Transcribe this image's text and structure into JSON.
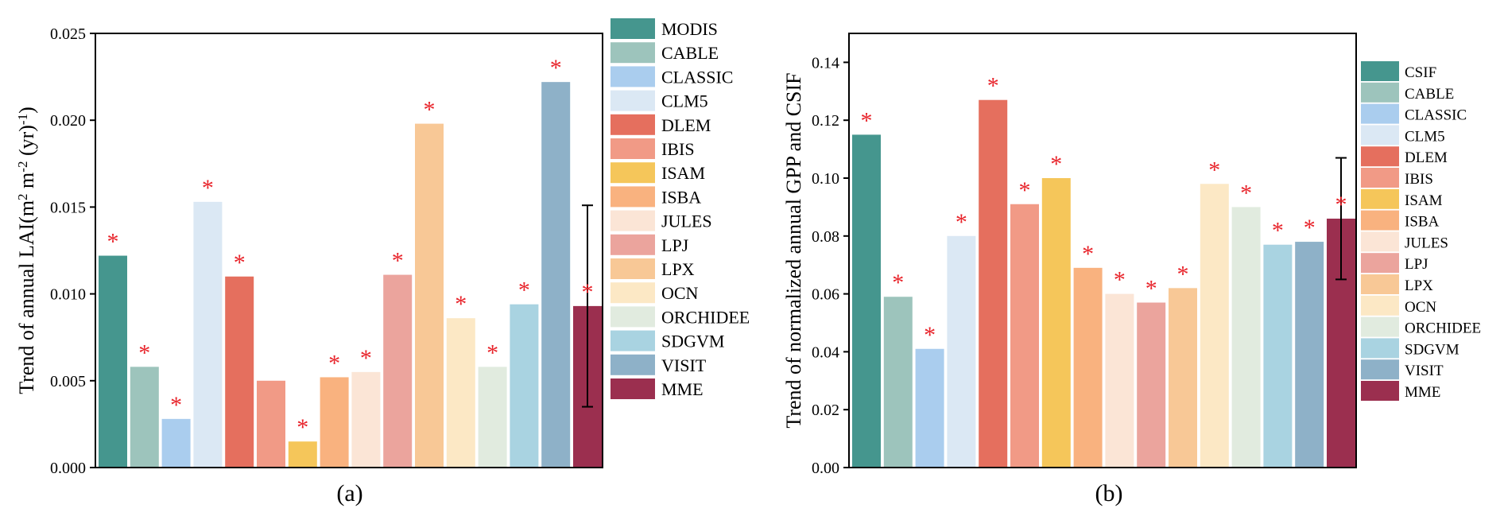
{
  "colors": {
    "MODIS": "#45968e",
    "CSIF": "#45968e",
    "CABLE": "#9dc4bc",
    "CLASSIC": "#aacdee",
    "CLM5": "#dbe8f4",
    "DLEM": "#e56f5e",
    "IBIS": "#f19a86",
    "ISAM": "#f5c65a",
    "ISBA": "#f9b27f",
    "JULES": "#fbe5d6",
    "LPJ": "#eba49d",
    "LPX": "#f8c896",
    "OCN": "#fce8c5",
    "ORCHIDEE": "#e1ebdf",
    "SDGVM": "#a9d3e1",
    "VISIT": "#8eb1c8",
    "MME": "#9b2f4f",
    "star": "#e8232a"
  },
  "chart_data": [
    {
      "type": "bar",
      "panel_label": "(a)",
      "title": "",
      "xlabel": "",
      "ylabel": "Trend of annual LAI(m",
      "ylabel_sup1": "2",
      "ylabel_mid": " m",
      "ylabel_sup2": "-2",
      "ylabel_mid2": " (yr)",
      "ylabel_sup3": "-1",
      "ylabel_end": ")",
      "ylim": [
        0,
        0.025
      ],
      "yticks": [
        "0.000",
        "0.005",
        "0.010",
        "0.015",
        "0.020",
        "0.025"
      ],
      "ytick_values": [
        0,
        0.005,
        0.01,
        0.015,
        0.02,
        0.025
      ],
      "categories": [
        "MODIS",
        "CABLE",
        "CLASSIC",
        "CLM5",
        "DLEM",
        "IBIS",
        "ISAM",
        "ISBA",
        "JULES",
        "LPJ",
        "LPX",
        "OCN",
        "ORCHIDEE",
        "SDGVM",
        "VISIT",
        "MME"
      ],
      "values": [
        0.0122,
        0.0058,
        0.0028,
        0.0153,
        0.011,
        0.005,
        0.0015,
        0.0052,
        0.0055,
        0.0111,
        0.0198,
        0.0086,
        0.0058,
        0.0094,
        0.0222,
        0.0093
      ],
      "significant": [
        true,
        true,
        true,
        true,
        true,
        false,
        true,
        true,
        true,
        true,
        true,
        true,
        true,
        true,
        true,
        true
      ],
      "star_symbol": "*",
      "error_bar": {
        "category": "MME",
        "low": 0.0035,
        "high": 0.0151
      },
      "legend": [
        "MODIS",
        "CABLE",
        "CLASSIC",
        "CLM5",
        "DLEM",
        "IBIS",
        "ISAM",
        "ISBA",
        "JULES",
        "LPJ",
        "LPX",
        "OCN",
        "ORCHIDEE",
        "SDGVM",
        "VISIT",
        "MME"
      ],
      "legend_position": "right"
    },
    {
      "type": "bar",
      "panel_label": "(b)",
      "title": "",
      "xlabel": "",
      "ylabel": "Trend of normalized annual GPP and CSIF",
      "ylim": [
        0,
        0.15
      ],
      "yticks": [
        "0.00",
        "0.02",
        "0.04",
        "0.06",
        "0.08",
        "0.10",
        "0.12",
        "0.14"
      ],
      "ytick_values": [
        0,
        0.02,
        0.04,
        0.06,
        0.08,
        0.1,
        0.12,
        0.14
      ],
      "categories": [
        "CSIF",
        "CABLE",
        "CLASSIC",
        "CLM5",
        "DLEM",
        "IBIS",
        "ISAM",
        "ISBA",
        "JULES",
        "LPJ",
        "LPX",
        "OCN",
        "ORCHIDEE",
        "SDGVM",
        "VISIT",
        "MME"
      ],
      "values": [
        0.115,
        0.059,
        0.041,
        0.08,
        0.127,
        0.091,
        0.1,
        0.069,
        0.06,
        0.057,
        0.062,
        0.098,
        0.09,
        0.077,
        0.078,
        0.086
      ],
      "significant": [
        true,
        true,
        true,
        true,
        true,
        true,
        true,
        true,
        true,
        true,
        true,
        true,
        true,
        true,
        true,
        true
      ],
      "star_symbol": "*",
      "error_bar": {
        "category": "MME",
        "low": 0.065,
        "high": 0.107
      },
      "legend": [
        "CSIF",
        "CABLE",
        "CLASSIC",
        "CLM5",
        "DLEM",
        "IBIS",
        "ISAM",
        "ISBA",
        "JULES",
        "LPJ",
        "LPX",
        "OCN",
        "ORCHIDEE",
        "SDGVM",
        "VISIT",
        "MME"
      ],
      "legend_position": "right"
    }
  ]
}
